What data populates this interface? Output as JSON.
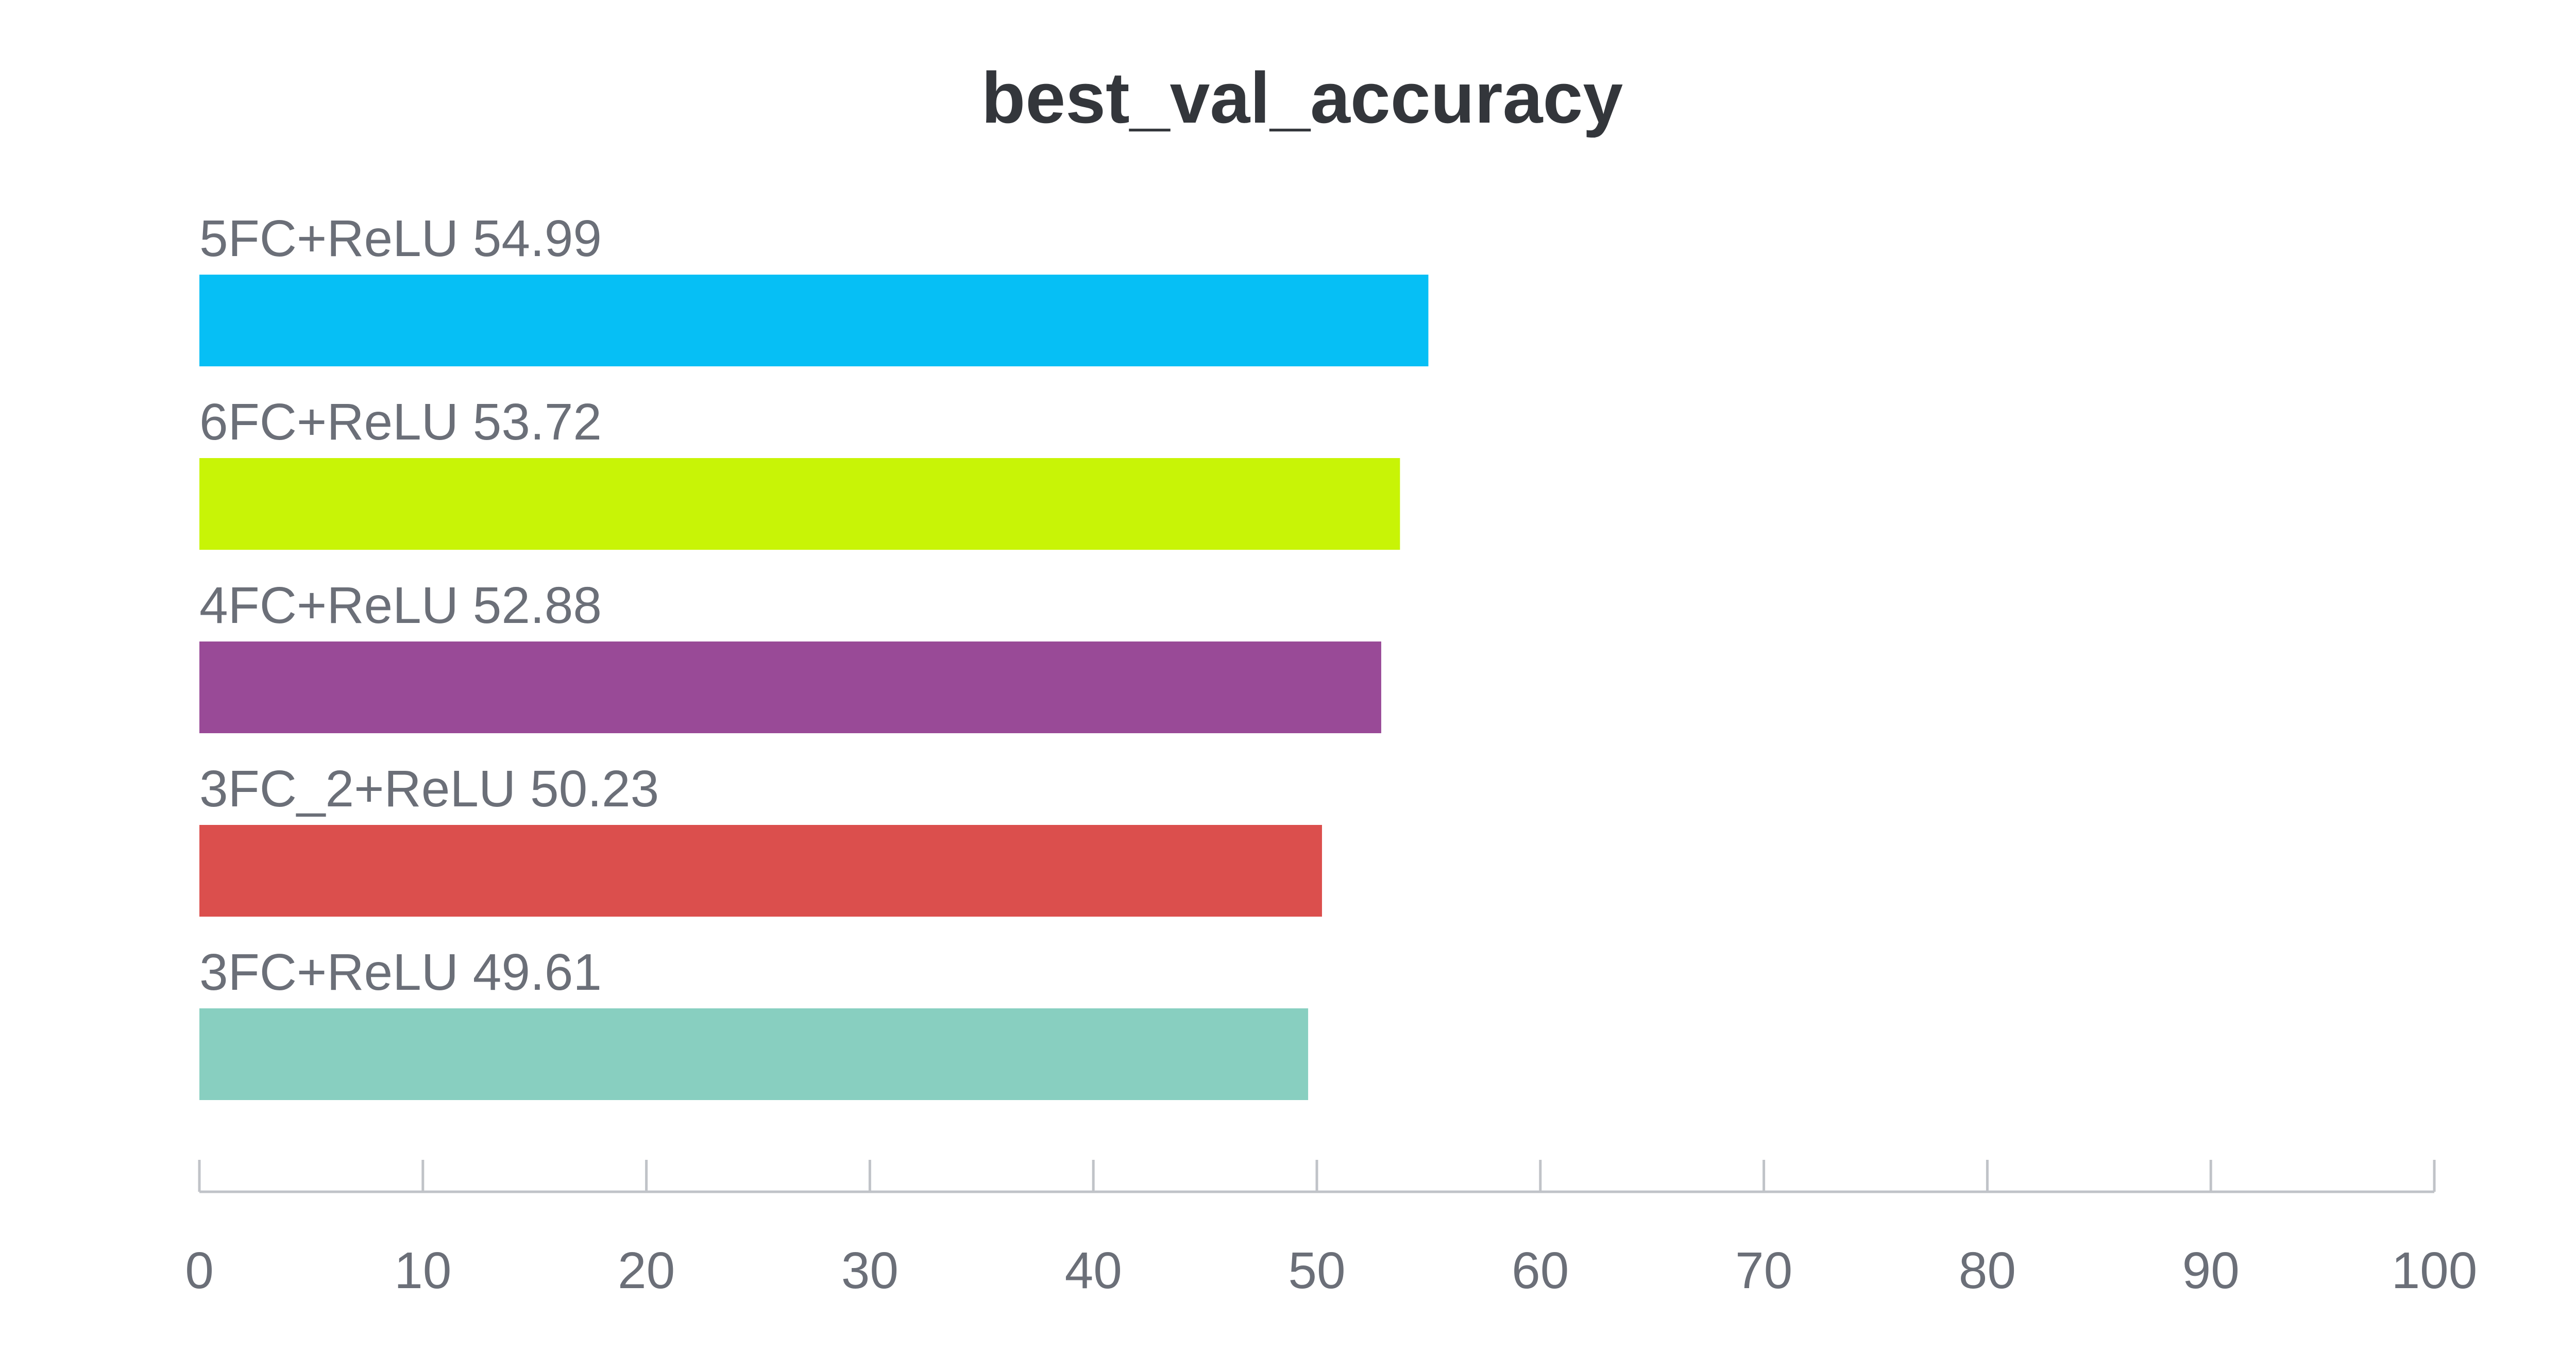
{
  "chart_data": {
    "type": "bar",
    "orientation": "horizontal",
    "title": "best_val_accuracy",
    "xlabel": "",
    "ylabel": "",
    "xlim": [
      0,
      100
    ],
    "xticks": [
      0,
      10,
      20,
      30,
      40,
      50,
      60,
      70,
      80,
      90,
      100
    ],
    "grid": false,
    "categories": [
      "5FC+ReLU",
      "6FC+ReLU",
      "4FC+ReLU",
      "3FC_2+ReLU",
      "3FC+ReLU"
    ],
    "values": [
      54.99,
      53.72,
      52.88,
      50.23,
      49.61
    ],
    "labels": [
      "5FC+ReLU 54.99",
      "6FC+ReLU 53.72",
      "4FC+ReLU 52.88",
      "3FC_2+ReLU 50.23",
      "3FC+ReLU 49.61"
    ],
    "colors": [
      "#06bff5",
      "#c8f406",
      "#994a97",
      "#db4f4d",
      "#88cfc0"
    ],
    "axis_color": "#c0c3c8",
    "text_color": "#6b6f78"
  }
}
